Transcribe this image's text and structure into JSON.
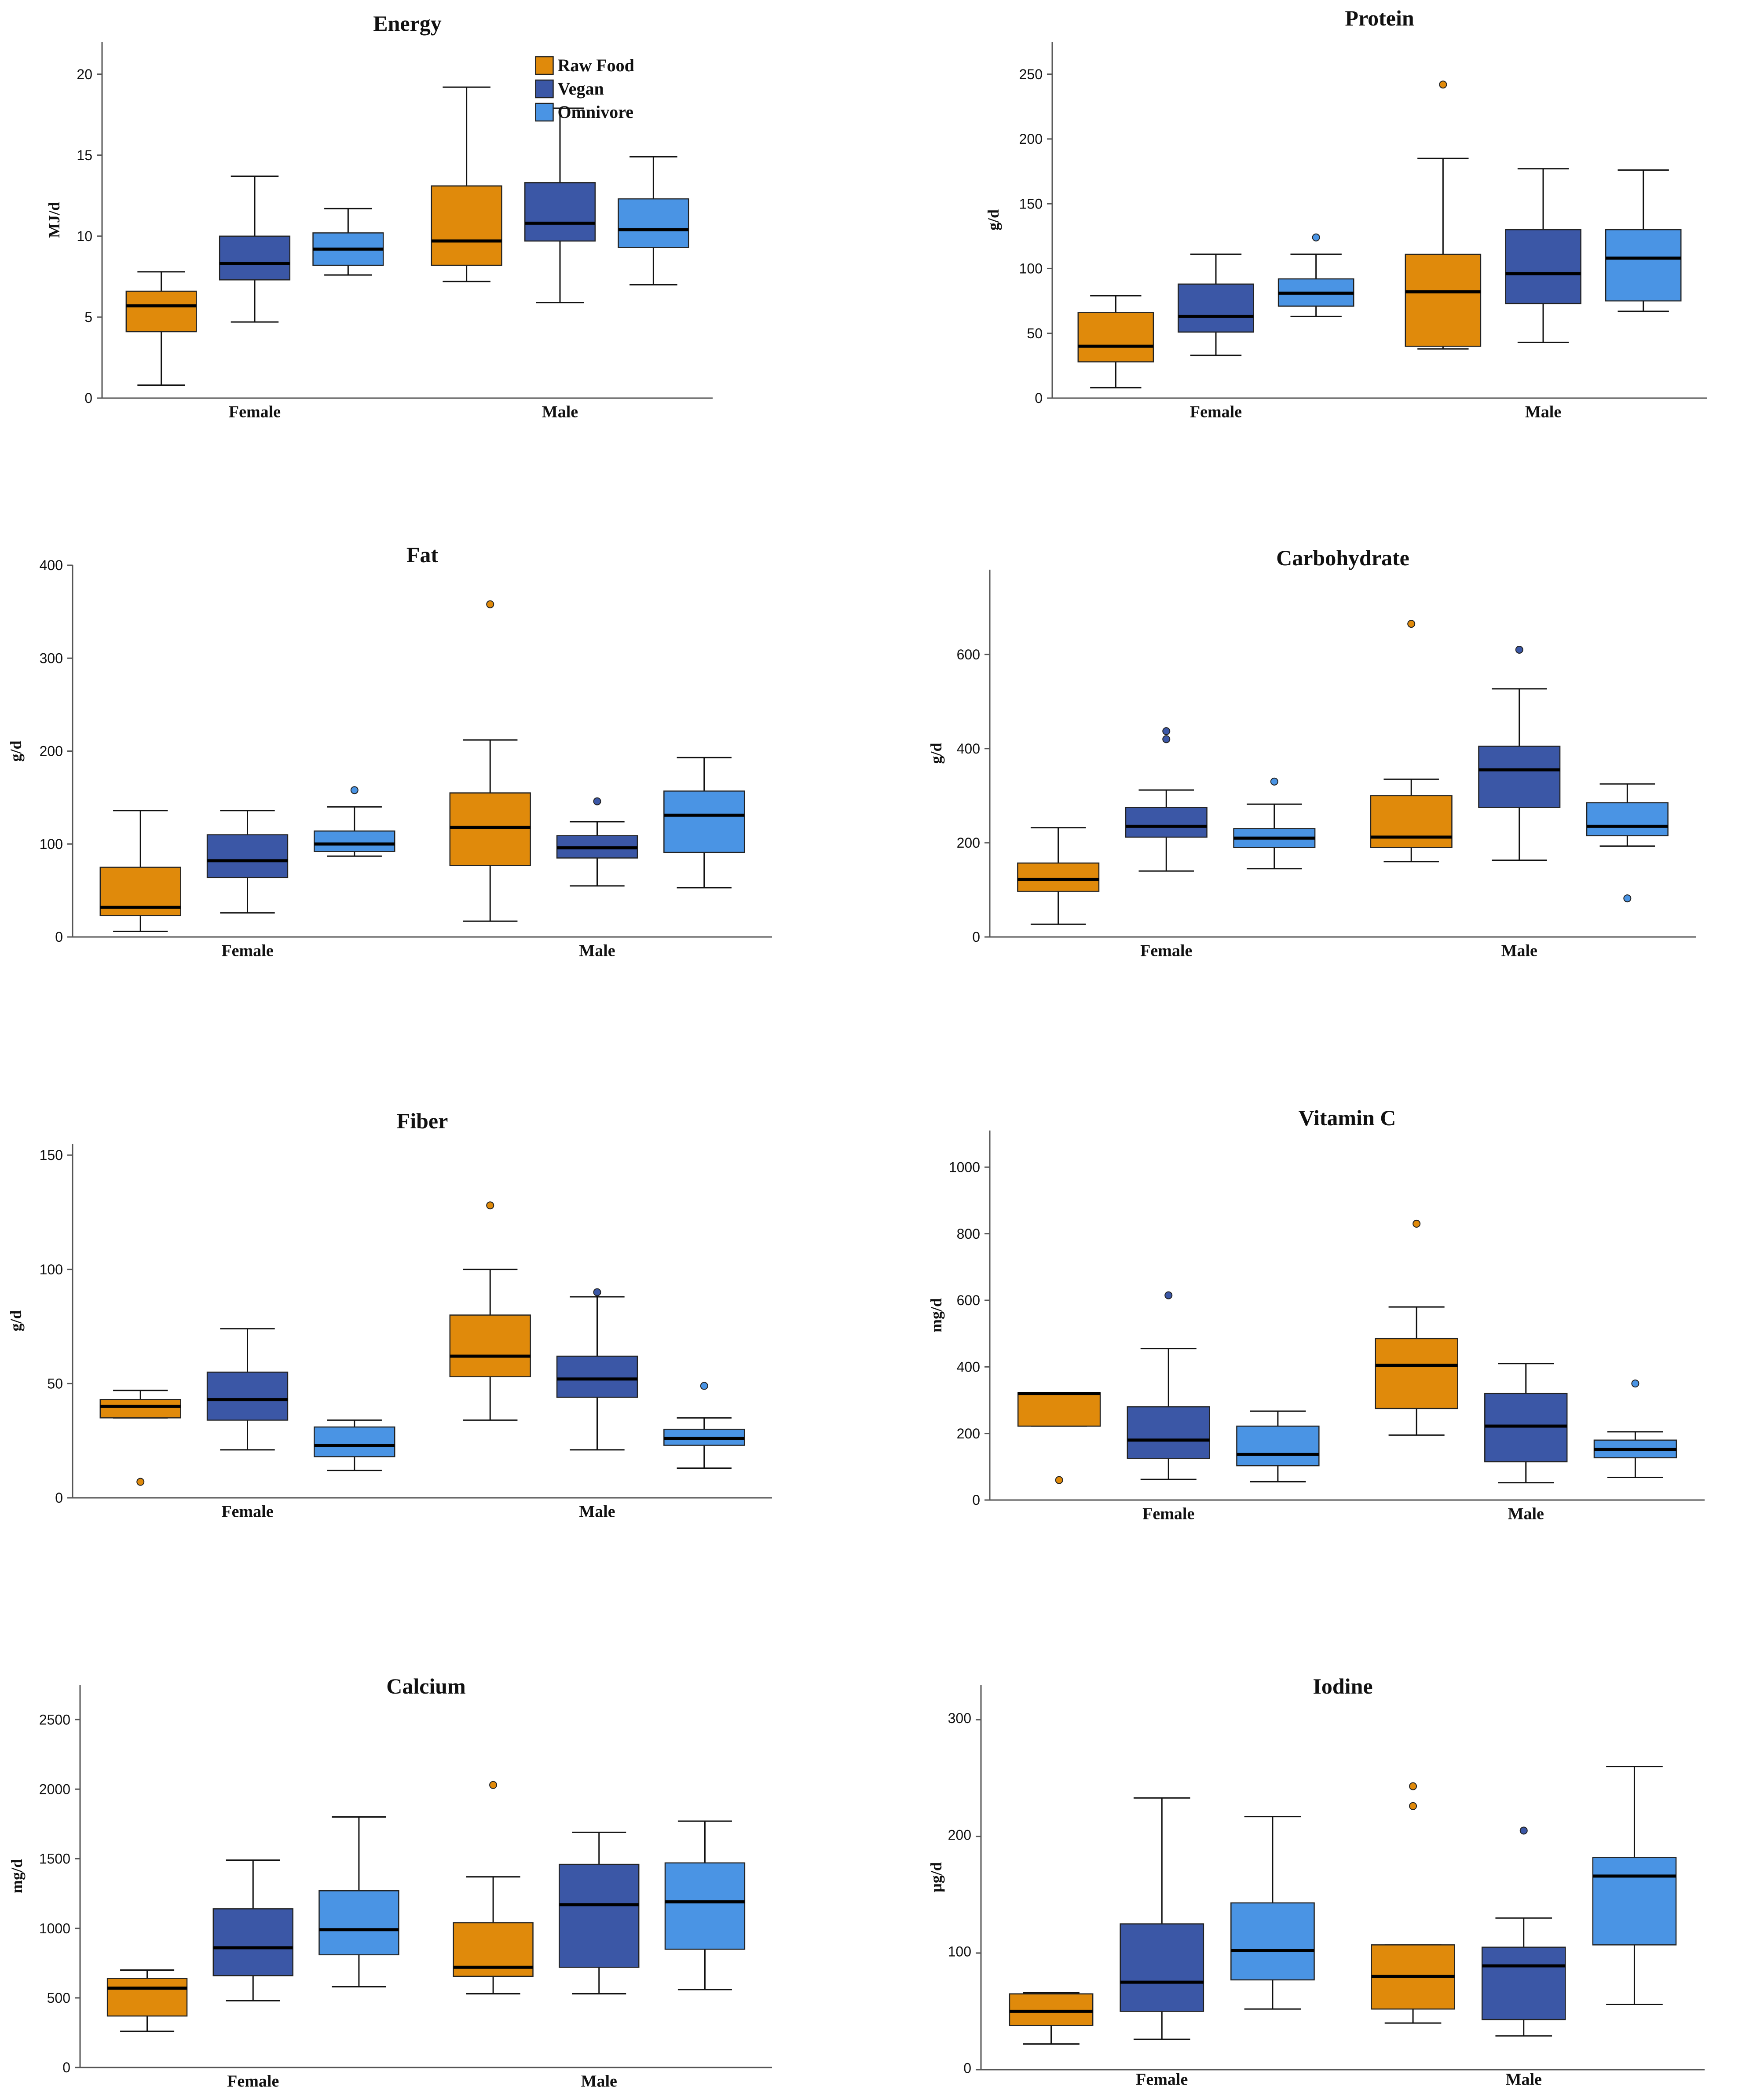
{
  "colors": {
    "raw_food": "#e08a0b",
    "vegan": "#3b57a6",
    "omnivore": "#4a94e4",
    "axis": "#555555",
    "text": "#111111"
  },
  "chart_data": [
    {
      "type": "boxplot",
      "title": "Energy",
      "ylabel": "MJ/d",
      "ylim": [
        0,
        22
      ],
      "yticks": [
        0,
        5,
        10,
        15,
        20
      ],
      "categories": [
        "Female",
        "Male"
      ],
      "series": [
        {
          "name": "Raw Food",
          "values": [
            {
              "whisker_low": 0.8,
              "q1": 4.1,
              "median": 5.7,
              "q3": 6.6,
              "whisker_high": 7.8,
              "outliers": []
            },
            {
              "whisker_low": 7.2,
              "q1": 8.2,
              "median": 9.7,
              "q3": 13.1,
              "whisker_high": 19.2,
              "outliers": []
            }
          ]
        },
        {
          "name": "Vegan",
          "values": [
            {
              "whisker_low": 4.7,
              "q1": 7.3,
              "median": 8.3,
              "q3": 10.0,
              "whisker_high": 13.7,
              "outliers": []
            },
            {
              "whisker_low": 5.9,
              "q1": 9.7,
              "median": 10.8,
              "q3": 13.3,
              "whisker_high": 17.9,
              "outliers": []
            }
          ]
        },
        {
          "name": "Omnivore",
          "values": [
            {
              "whisker_low": 7.6,
              "q1": 8.2,
              "median": 9.2,
              "q3": 10.2,
              "whisker_high": 11.7,
              "outliers": []
            },
            {
              "whisker_low": 7.0,
              "q1": 9.3,
              "median": 10.4,
              "q3": 12.3,
              "whisker_high": 14.9,
              "outliers": []
            }
          ]
        }
      ]
    },
    {
      "type": "boxplot",
      "title": "Protein",
      "ylabel": "g/d",
      "ylim": [
        0,
        275
      ],
      "yticks": [
        0,
        50,
        100,
        150,
        200,
        250
      ],
      "categories": [
        "Female",
        "Male"
      ],
      "series": [
        {
          "name": "Raw Food",
          "values": [
            {
              "whisker_low": 8,
              "q1": 28,
              "median": 40,
              "q3": 66,
              "whisker_high": 79,
              "outliers": []
            },
            {
              "whisker_low": 38,
              "q1": 40,
              "median": 82,
              "q3": 111,
              "whisker_high": 185,
              "outliers": [
                242
              ]
            }
          ]
        },
        {
          "name": "Vegan",
          "values": [
            {
              "whisker_low": 33,
              "q1": 51,
              "median": 63,
              "q3": 88,
              "whisker_high": 111,
              "outliers": []
            },
            {
              "whisker_low": 43,
              "q1": 73,
              "median": 96,
              "q3": 130,
              "whisker_high": 177,
              "outliers": []
            }
          ]
        },
        {
          "name": "Omnivore",
          "values": [
            {
              "whisker_low": 63,
              "q1": 71,
              "median": 81,
              "q3": 92,
              "whisker_high": 111,
              "outliers": [
                124
              ]
            },
            {
              "whisker_low": 67,
              "q1": 75,
              "median": 108,
              "q3": 130,
              "whisker_high": 176,
              "outliers": []
            }
          ]
        }
      ]
    },
    {
      "type": "boxplot",
      "title": "Fat",
      "ylabel": "g/d",
      "ylim": [
        0,
        400
      ],
      "yticks": [
        0,
        100,
        200,
        300,
        400
      ],
      "categories": [
        "Female",
        "Male"
      ],
      "series": [
        {
          "name": "Raw Food",
          "values": [
            {
              "whisker_low": 6,
              "q1": 23,
              "median": 32,
              "q3": 75,
              "whisker_high": 136,
              "outliers": []
            },
            {
              "whisker_low": 17,
              "q1": 77,
              "median": 118,
              "q3": 155,
              "whisker_high": 212,
              "outliers": [
                358
              ]
            }
          ]
        },
        {
          "name": "Vegan",
          "values": [
            {
              "whisker_low": 26,
              "q1": 64,
              "median": 82,
              "q3": 110,
              "whisker_high": 136,
              "outliers": []
            },
            {
              "whisker_low": 55,
              "q1": 85,
              "median": 96,
              "q3": 109,
              "whisker_high": 124,
              "outliers": [
                146
              ]
            }
          ]
        },
        {
          "name": "Omnivore",
          "values": [
            {
              "whisker_low": 87,
              "q1": 92,
              "median": 100,
              "q3": 114,
              "whisker_high": 140,
              "outliers": [
                158
              ]
            },
            {
              "whisker_low": 53,
              "q1": 91,
              "median": 131,
              "q3": 157,
              "whisker_high": 193,
              "outliers": []
            }
          ]
        }
      ]
    },
    {
      "type": "boxplot",
      "title": "Carbohydrate",
      "ylabel": "g/d",
      "ylim": [
        0,
        780
      ],
      "yticks": [
        0,
        200,
        400,
        600
      ],
      "categories": [
        "Female",
        "Male"
      ],
      "series": [
        {
          "name": "Raw Food",
          "values": [
            {
              "whisker_low": 27,
              "q1": 97,
              "median": 122,
              "q3": 157,
              "whisker_high": 232,
              "outliers": []
            },
            {
              "whisker_low": 160,
              "q1": 190,
              "median": 212,
              "q3": 300,
              "whisker_high": 335,
              "outliers": [
                665
              ]
            }
          ]
        },
        {
          "name": "Vegan",
          "values": [
            {
              "whisker_low": 140,
              "q1": 212,
              "median": 235,
              "q3": 275,
              "whisker_high": 312,
              "outliers": [
                420,
                437
              ]
            },
            {
              "whisker_low": 163,
              "q1": 275,
              "median": 355,
              "q3": 405,
              "whisker_high": 527,
              "outliers": [
                610
              ]
            }
          ]
        },
        {
          "name": "Omnivore",
          "values": [
            {
              "whisker_low": 145,
              "q1": 190,
              "median": 210,
              "q3": 230,
              "whisker_high": 282,
              "outliers": [
                330
              ]
            },
            {
              "whisker_low": 193,
              "q1": 215,
              "median": 235,
              "q3": 285,
              "whisker_high": 325,
              "outliers": [
                82
              ]
            }
          ]
        }
      ]
    },
    {
      "type": "boxplot",
      "title": "Fiber",
      "ylabel": "g/d",
      "ylim": [
        0,
        155
      ],
      "yticks": [
        0,
        50,
        100,
        150
      ],
      "categories": [
        "Female",
        "Male"
      ],
      "series": [
        {
          "name": "Raw Food",
          "values": [
            {
              "whisker_low": 35,
              "q1": 35,
              "median": 40,
              "q3": 43,
              "whisker_high": 47,
              "outliers": [
                7
              ]
            },
            {
              "whisker_low": 34,
              "q1": 53,
              "median": 62,
              "q3": 80,
              "whisker_high": 100,
              "outliers": [
                128
              ]
            }
          ]
        },
        {
          "name": "Vegan",
          "values": [
            {
              "whisker_low": 21,
              "q1": 34,
              "median": 43,
              "q3": 55,
              "whisker_high": 74,
              "outliers": []
            },
            {
              "whisker_low": 21,
              "q1": 44,
              "median": 52,
              "q3": 62,
              "whisker_high": 88,
              "outliers": [
                90
              ]
            }
          ]
        },
        {
          "name": "Omnivore",
          "values": [
            {
              "whisker_low": 12,
              "q1": 18,
              "median": 23,
              "q3": 31,
              "whisker_high": 34,
              "outliers": []
            },
            {
              "whisker_low": 13,
              "q1": 23,
              "median": 26,
              "q3": 30,
              "whisker_high": 35,
              "outliers": [
                49
              ]
            }
          ]
        }
      ]
    },
    {
      "type": "boxplot",
      "title": "Vitamin C",
      "ylabel": "mg/d",
      "ylim": [
        0,
        1110
      ],
      "yticks": [
        0,
        200,
        400,
        600,
        800,
        1000
      ],
      "categories": [
        "Female",
        "Male"
      ],
      "series": [
        {
          "name": "Raw Food",
          "values": [
            {
              "whisker_low": 222,
              "q1": 222,
              "median": 320,
              "q3": 322,
              "whisker_high": 322,
              "outliers": [
                60
              ]
            },
            {
              "whisker_low": 195,
              "q1": 275,
              "median": 405,
              "q3": 485,
              "whisker_high": 580,
              "outliers": [
                830
              ]
            }
          ]
        },
        {
          "name": "Vegan",
          "values": [
            {
              "whisker_low": 62,
              "q1": 125,
              "median": 180,
              "q3": 280,
              "whisker_high": 455,
              "outliers": [
                615
              ]
            },
            {
              "whisker_low": 52,
              "q1": 115,
              "median": 222,
              "q3": 320,
              "whisker_high": 410,
              "outliers": []
            }
          ]
        },
        {
          "name": "Omnivore",
          "values": [
            {
              "whisker_low": 55,
              "q1": 103,
              "median": 137,
              "q3": 222,
              "whisker_high": 267,
              "outliers": []
            },
            {
              "whisker_low": 68,
              "q1": 127,
              "median": 152,
              "q3": 180,
              "whisker_high": 205,
              "outliers": [
                350
              ]
            }
          ]
        }
      ]
    },
    {
      "type": "boxplot",
      "title": "Calcium",
      "ylabel": "mg/d",
      "ylim": [
        0,
        2750
      ],
      "yticks": [
        0,
        500,
        1000,
        1500,
        2000,
        2500
      ],
      "categories": [
        "Female",
        "Male"
      ],
      "series": [
        {
          "name": "Raw Food",
          "values": [
            {
              "whisker_low": 260,
              "q1": 370,
              "median": 570,
              "q3": 640,
              "whisker_high": 700,
              "outliers": []
            },
            {
              "whisker_low": 530,
              "q1": 655,
              "median": 720,
              "q3": 1040,
              "whisker_high": 1370,
              "outliers": [
                2030
              ]
            }
          ]
        },
        {
          "name": "Vegan",
          "values": [
            {
              "whisker_low": 480,
              "q1": 660,
              "median": 860,
              "q3": 1140,
              "whisker_high": 1490,
              "outliers": []
            },
            {
              "whisker_low": 530,
              "q1": 720,
              "median": 1170,
              "q3": 1460,
              "whisker_high": 1690,
              "outliers": []
            }
          ]
        },
        {
          "name": "Omnivore",
          "values": [
            {
              "whisker_low": 580,
              "q1": 810,
              "median": 990,
              "q3": 1270,
              "whisker_high": 1800,
              "outliers": []
            },
            {
              "whisker_low": 560,
              "q1": 850,
              "median": 1190,
              "q3": 1470,
              "whisker_high": 1770,
              "outliers": []
            }
          ]
        }
      ]
    },
    {
      "type": "boxplot",
      "title": "Iodine",
      "ylabel": "µg/d",
      "ylim": [
        0,
        330
      ],
      "yticks": [
        0,
        100,
        200,
        300
      ],
      "categories": [
        "Female",
        "Male"
      ],
      "series": [
        {
          "name": "Raw Food",
          "values": [
            {
              "whisker_low": 22,
              "q1": 38,
              "median": 50,
              "q3": 65,
              "whisker_high": 66,
              "outliers": []
            },
            {
              "whisker_low": 40,
              "q1": 52,
              "median": 80,
              "q3": 107,
              "whisker_high": 107,
              "outliers": [
                226,
                243
              ]
            }
          ]
        },
        {
          "name": "Vegan",
          "values": [
            {
              "whisker_low": 26,
              "q1": 50,
              "median": 75,
              "q3": 125,
              "whisker_high": 233,
              "outliers": []
            },
            {
              "whisker_low": 29,
              "q1": 43,
              "median": 89,
              "q3": 105,
              "whisker_high": 130,
              "outliers": [
                205
              ]
            }
          ]
        },
        {
          "name": "Omnivore",
          "values": [
            {
              "whisker_low": 52,
              "q1": 77,
              "median": 102,
              "q3": 143,
              "whisker_high": 217,
              "outliers": []
            },
            {
              "whisker_low": 56,
              "q1": 107,
              "median": 166,
              "q3": 182,
              "whisker_high": 260,
              "outliers": []
            }
          ]
        }
      ]
    }
  ]
}
